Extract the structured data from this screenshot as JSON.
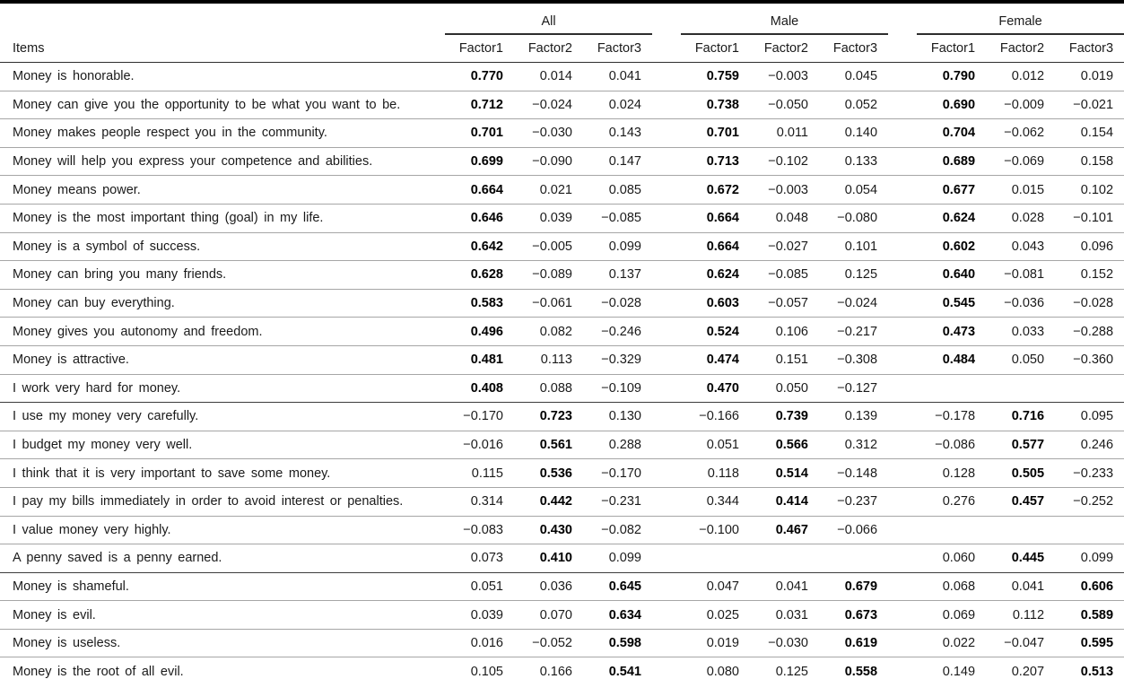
{
  "table": {
    "items_header": "Items",
    "groups": [
      {
        "label": "All"
      },
      {
        "label": "Male"
      },
      {
        "label": "Female"
      }
    ],
    "factor_headers": [
      "Factor1",
      "Factor2",
      "Factor3"
    ],
    "colors": {
      "rule_heavy": "#000000",
      "rule_medium": "#2e2e2e",
      "rule_light": "#a6a6a6",
      "text": "#1a1a1a"
    },
    "rows": [
      {
        "label": "Money is honorable.",
        "primary_factor": 1,
        "group_end": false,
        "values": [
          "0.770",
          "0.014",
          "0.041",
          "0.759",
          "−0.003",
          "0.045",
          "0.790",
          "0.012",
          "0.019"
        ]
      },
      {
        "label": "Money can give you the opportunity to be what you want to be.",
        "primary_factor": 1,
        "group_end": false,
        "values": [
          "0.712",
          "−0.024",
          "0.024",
          "0.738",
          "−0.050",
          "0.052",
          "0.690",
          "−0.009",
          "−0.021"
        ]
      },
      {
        "label": "Money makes people respect you in the community.",
        "primary_factor": 1,
        "group_end": false,
        "values": [
          "0.701",
          "−0.030",
          "0.143",
          "0.701",
          "0.011",
          "0.140",
          "0.704",
          "−0.062",
          "0.154"
        ]
      },
      {
        "label": "Money will help you express your competence and abilities.",
        "primary_factor": 1,
        "group_end": false,
        "values": [
          "0.699",
          "−0.090",
          "0.147",
          "0.713",
          "−0.102",
          "0.133",
          "0.689",
          "−0.069",
          "0.158"
        ]
      },
      {
        "label": "Money means power.",
        "primary_factor": 1,
        "group_end": false,
        "values": [
          "0.664",
          "0.021",
          "0.085",
          "0.672",
          "−0.003",
          "0.054",
          "0.677",
          "0.015",
          "0.102"
        ]
      },
      {
        "label": "Money is the most important thing (goal) in my life.",
        "primary_factor": 1,
        "group_end": false,
        "values": [
          "0.646",
          "0.039",
          "−0.085",
          "0.664",
          "0.048",
          "−0.080",
          "0.624",
          "0.028",
          "−0.101"
        ]
      },
      {
        "label": "Money is a symbol of success.",
        "primary_factor": 1,
        "group_end": false,
        "values": [
          "0.642",
          "−0.005",
          "0.099",
          "0.664",
          "−0.027",
          "0.101",
          "0.602",
          "0.043",
          "0.096"
        ]
      },
      {
        "label": "Money can bring you many friends.",
        "primary_factor": 1,
        "group_end": false,
        "values": [
          "0.628",
          "−0.089",
          "0.137",
          "0.624",
          "−0.085",
          "0.125",
          "0.640",
          "−0.081",
          "0.152"
        ]
      },
      {
        "label": "Money can buy everything.",
        "primary_factor": 1,
        "group_end": false,
        "values": [
          "0.583",
          "−0.061",
          "−0.028",
          "0.603",
          "−0.057",
          "−0.024",
          "0.545",
          "−0.036",
          "−0.028"
        ]
      },
      {
        "label": "Money gives you autonomy and freedom.",
        "primary_factor": 1,
        "group_end": false,
        "values": [
          "0.496",
          "0.082",
          "−0.246",
          "0.524",
          "0.106",
          "−0.217",
          "0.473",
          "0.033",
          "−0.288"
        ]
      },
      {
        "label": "Money is attractive.",
        "primary_factor": 1,
        "group_end": false,
        "values": [
          "0.481",
          "0.113",
          "−0.329",
          "0.474",
          "0.151",
          "−0.308",
          "0.484",
          "0.050",
          "−0.360"
        ]
      },
      {
        "label": "I work very hard for money.",
        "primary_factor": 1,
        "group_end": true,
        "values": [
          "0.408",
          "0.088",
          "−0.109",
          "0.470",
          "0.050",
          "−0.127",
          "",
          "",
          ""
        ]
      },
      {
        "label": "I use my money very carefully.",
        "primary_factor": 2,
        "group_end": false,
        "values": [
          "−0.170",
          "0.723",
          "0.130",
          "−0.166",
          "0.739",
          "0.139",
          "−0.178",
          "0.716",
          "0.095"
        ]
      },
      {
        "label": "I budget my money very well.",
        "primary_factor": 2,
        "group_end": false,
        "values": [
          "−0.016",
          "0.561",
          "0.288",
          "0.051",
          "0.566",
          "0.312",
          "−0.086",
          "0.577",
          "0.246"
        ]
      },
      {
        "label": "I think that it is very important to save some money.",
        "primary_factor": 2,
        "group_end": false,
        "values": [
          "0.115",
          "0.536",
          "−0.170",
          "0.118",
          "0.514",
          "−0.148",
          "0.128",
          "0.505",
          "−0.233"
        ]
      },
      {
        "label": "I pay my bills immediately in order to avoid interest or penalties.",
        "primary_factor": 2,
        "group_end": false,
        "values": [
          "0.314",
          "0.442",
          "−0.231",
          "0.344",
          "0.414",
          "−0.237",
          "0.276",
          "0.457",
          "−0.252"
        ]
      },
      {
        "label": "I value money very highly.",
        "primary_factor": 2,
        "group_end": false,
        "values": [
          "−0.083",
          "0.430",
          "−0.082",
          "−0.100",
          "0.467",
          "−0.066",
          "",
          "",
          ""
        ]
      },
      {
        "label": "A penny saved is a penny earned.",
        "primary_factor": 2,
        "group_end": true,
        "values": [
          "0.073",
          "0.410",
          "0.099",
          "",
          "",
          "",
          "0.060",
          "0.445",
          "0.099"
        ]
      },
      {
        "label": "Money is shameful.",
        "primary_factor": 3,
        "group_end": false,
        "values": [
          "0.051",
          "0.036",
          "0.645",
          "0.047",
          "0.041",
          "0.679",
          "0.068",
          "0.041",
          "0.606"
        ]
      },
      {
        "label": "Money is evil.",
        "primary_factor": 3,
        "group_end": false,
        "values": [
          "0.039",
          "0.070",
          "0.634",
          "0.025",
          "0.031",
          "0.673",
          "0.069",
          "0.112",
          "0.589"
        ]
      },
      {
        "label": "Money is useless.",
        "primary_factor": 3,
        "group_end": false,
        "values": [
          "0.016",
          "−0.052",
          "0.598",
          "0.019",
          "−0.030",
          "0.619",
          "0.022",
          "−0.047",
          "0.595"
        ]
      },
      {
        "label": "Money is the root of all evil.",
        "primary_factor": 3,
        "group_end": false,
        "values": [
          "0.105",
          "0.166",
          "0.541",
          "0.080",
          "0.125",
          "0.558",
          "0.149",
          "0.207",
          "0.513"
        ]
      }
    ]
  }
}
